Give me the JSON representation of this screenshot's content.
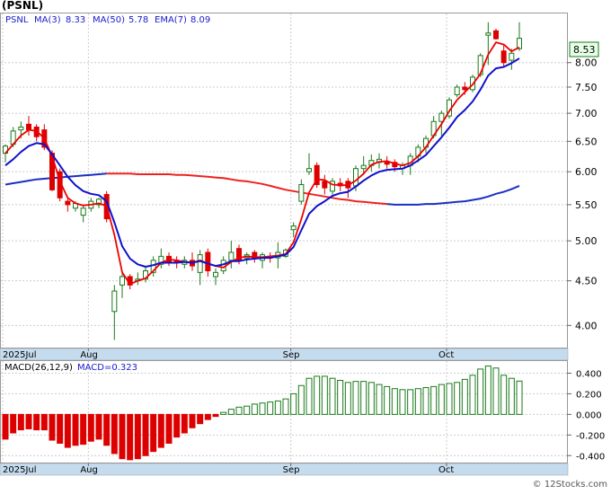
{
  "title": "(PSNL)",
  "legend": {
    "symbol": "PSNL",
    "ma3_label": "MA(3)",
    "ma3_value": "8.33",
    "ma50_label": "MA(50)",
    "ma50_value": "5.78",
    "ema7_label": "EMA(7)",
    "ema7_value": "8.09"
  },
  "last_price_label": "8.53",
  "macd_legend": {
    "label": "MACD(26,12,9)",
    "value_label": "MACD=0.323"
  },
  "watermark": "© 12Stocks.com",
  "colors": {
    "up": "#1a7a1a",
    "down": "#dd0000",
    "ma3": "#ee0000",
    "ema7": "#1010cc",
    "ma50_line": "#ee2222",
    "ma50_long": "#1a30c0",
    "axisbar": "#c5dcef",
    "macd_pos": "#1a7a1a",
    "macd_neg": "#dd0000",
    "price_tag": "#e8ffe8"
  },
  "chart_data": [
    {
      "type": "candlestick",
      "title": "(PSNL)",
      "scale": "log",
      "ylim": [
        3.8,
        9.0
      ],
      "y_ticks": [
        "8.00",
        "7.50",
        "7.00",
        "6.50",
        "6.00",
        "5.50",
        "5.00",
        "4.50",
        "4.00"
      ],
      "x_labels": [
        {
          "label": "2025Jul",
          "index": 0
        },
        {
          "label": "Aug",
          "index": 11
        },
        {
          "label": "Sep",
          "index": 37
        },
        {
          "label": "Oct",
          "index": 57
        }
      ],
      "ohlc": [
        [
          6.3,
          6.45,
          6.15,
          6.42
        ],
        [
          6.45,
          6.75,
          6.4,
          6.68
        ],
        [
          6.7,
          6.85,
          6.55,
          6.75
        ],
        [
          6.8,
          6.95,
          6.6,
          6.7
        ],
        [
          6.75,
          6.8,
          6.5,
          6.58
        ],
        [
          6.7,
          6.8,
          6.35,
          6.4
        ],
        [
          6.3,
          6.35,
          5.7,
          5.72
        ],
        [
          6.0,
          6.05,
          5.55,
          5.6
        ],
        [
          5.55,
          5.6,
          5.4,
          5.5
        ],
        [
          5.45,
          5.55,
          5.4,
          5.52
        ],
        [
          5.35,
          5.5,
          5.25,
          5.45
        ],
        [
          5.45,
          5.6,
          5.4,
          5.55
        ],
        [
          5.5,
          5.6,
          5.45,
          5.58
        ],
        [
          5.65,
          5.7,
          5.25,
          5.3
        ],
        [
          4.15,
          4.45,
          3.85,
          4.38
        ],
        [
          4.45,
          4.6,
          4.3,
          4.55
        ],
        [
          4.55,
          4.58,
          4.4,
          4.45
        ],
        [
          4.5,
          4.6,
          4.45,
          4.52
        ],
        [
          4.52,
          4.68,
          4.48,
          4.62
        ],
        [
          4.6,
          4.8,
          4.55,
          4.75
        ],
        [
          4.7,
          4.9,
          4.65,
          4.8
        ],
        [
          4.8,
          4.85,
          4.68,
          4.72
        ],
        [
          4.75,
          4.8,
          4.65,
          4.72
        ],
        [
          4.7,
          4.8,
          4.65,
          4.75
        ],
        [
          4.75,
          4.85,
          4.62,
          4.68
        ],
        [
          4.6,
          4.88,
          4.45,
          4.82
        ],
        [
          4.85,
          4.9,
          4.55,
          4.62
        ],
        [
          4.55,
          4.65,
          4.45,
          4.6
        ],
        [
          4.62,
          4.8,
          4.58,
          4.75
        ],
        [
          4.75,
          5.0,
          4.65,
          4.85
        ],
        [
          4.9,
          4.95,
          4.7,
          4.75
        ],
        [
          4.78,
          4.85,
          4.7,
          4.82
        ],
        [
          4.85,
          4.88,
          4.72,
          4.78
        ],
        [
          4.75,
          4.85,
          4.65,
          4.82
        ],
        [
          4.8,
          4.85,
          4.72,
          4.78
        ],
        [
          4.78,
          4.98,
          4.65,
          4.85
        ],
        [
          4.8,
          4.9,
          4.78,
          4.88
        ],
        [
          5.15,
          5.25,
          5.05,
          5.2
        ],
        [
          5.55,
          5.88,
          5.5,
          5.8
        ],
        [
          6.0,
          6.3,
          5.95,
          6.05
        ],
        [
          6.1,
          6.15,
          5.75,
          5.8
        ],
        [
          5.85,
          5.95,
          5.65,
          5.75
        ],
        [
          5.7,
          5.9,
          5.65,
          5.85
        ],
        [
          5.82,
          5.9,
          5.7,
          5.78
        ],
        [
          5.85,
          5.9,
          5.6,
          5.75
        ],
        [
          5.78,
          6.1,
          5.7,
          6.05
        ],
        [
          6.05,
          6.25,
          5.95,
          6.1
        ],
        [
          6.1,
          6.28,
          6.0,
          6.18
        ],
        [
          6.15,
          6.3,
          6.05,
          6.2
        ],
        [
          6.15,
          6.25,
          6.05,
          6.12
        ],
        [
          6.15,
          6.2,
          6.0,
          6.08
        ],
        [
          6.05,
          6.15,
          5.95,
          6.1
        ],
        [
          6.1,
          6.3,
          5.95,
          6.25
        ],
        [
          6.25,
          6.45,
          6.15,
          6.4
        ],
        [
          6.4,
          6.6,
          6.3,
          6.55
        ],
        [
          6.6,
          6.95,
          6.55,
          6.85
        ],
        [
          6.85,
          7.05,
          6.6,
          7.0
        ],
        [
          6.95,
          7.3,
          6.9,
          7.25
        ],
        [
          7.35,
          7.55,
          7.3,
          7.5
        ],
        [
          7.5,
          7.6,
          7.35,
          7.45
        ],
        [
          7.45,
          7.75,
          7.4,
          7.7
        ],
        [
          7.75,
          8.2,
          7.7,
          8.15
        ],
        [
          8.6,
          8.9,
          7.95,
          8.65
        ],
        [
          8.7,
          8.75,
          8.5,
          8.52
        ],
        [
          8.25,
          8.4,
          7.9,
          8.0
        ],
        [
          8.05,
          8.3,
          7.85,
          8.2
        ],
        [
          8.3,
          8.9,
          8.25,
          8.53
        ]
      ],
      "series": [
        {
          "name": "MA(3)",
          "values": [
            6.3,
            6.45,
            6.6,
            6.7,
            6.68,
            6.55,
            6.25,
            5.85,
            5.6,
            5.52,
            5.49,
            5.5,
            5.52,
            5.48,
            5.08,
            4.6,
            4.46,
            4.5,
            4.53,
            4.62,
            4.72,
            4.76,
            4.75,
            4.73,
            4.72,
            4.75,
            4.71,
            4.68,
            4.66,
            4.73,
            4.78,
            4.8,
            4.79,
            4.79,
            4.8,
            4.81,
            4.83,
            4.98,
            5.29,
            5.68,
            5.88,
            5.87,
            5.8,
            5.79,
            5.79,
            5.86,
            5.97,
            6.11,
            6.16,
            6.17,
            6.13,
            6.1,
            6.14,
            6.25,
            6.4,
            6.6,
            6.8,
            7.04,
            7.25,
            7.4,
            7.55,
            7.77,
            8.17,
            8.44,
            8.39,
            8.24,
            8.33
          ]
        },
        {
          "name": "EMA(7)",
          "values": [
            6.1,
            6.2,
            6.32,
            6.42,
            6.47,
            6.45,
            6.28,
            6.1,
            5.92,
            5.79,
            5.7,
            5.66,
            5.64,
            5.55,
            5.25,
            4.93,
            4.77,
            4.7,
            4.67,
            4.69,
            4.72,
            4.72,
            4.72,
            4.73,
            4.72,
            4.74,
            4.71,
            4.68,
            4.7,
            4.74,
            4.74,
            4.76,
            4.77,
            4.78,
            4.78,
            4.8,
            4.82,
            4.92,
            5.14,
            5.37,
            5.48,
            5.55,
            5.63,
            5.67,
            5.69,
            5.77,
            5.86,
            5.94,
            6.0,
            6.03,
            6.04,
            6.05,
            6.1,
            6.18,
            6.27,
            6.42,
            6.57,
            6.74,
            6.93,
            7.06,
            7.22,
            7.45,
            7.73,
            7.88,
            7.91,
            7.99,
            8.09
          ]
        },
        {
          "name": "MA(50)",
          "values": [
            5.8,
            5.82,
            5.84,
            5.86,
            5.88,
            5.89,
            5.9,
            5.91,
            5.92,
            5.93,
            5.94,
            5.95,
            5.96,
            5.97,
            5.97,
            5.97,
            5.97,
            5.96,
            5.96,
            5.96,
            5.96,
            5.96,
            5.95,
            5.95,
            5.94,
            5.93,
            5.92,
            5.91,
            5.9,
            5.88,
            5.86,
            5.85,
            5.83,
            5.81,
            5.78,
            5.75,
            5.72,
            5.7,
            5.68,
            5.66,
            5.64,
            5.62,
            5.6,
            5.58,
            5.57,
            5.55,
            5.54,
            5.53,
            5.52,
            5.51,
            5.5,
            5.5,
            5.5,
            5.5,
            5.51,
            5.51,
            5.52,
            5.53,
            5.54,
            5.55,
            5.57,
            5.59,
            5.62,
            5.66,
            5.69,
            5.73,
            5.78
          ]
        }
      ]
    },
    {
      "type": "bar",
      "title": "MACD(26,12,9)",
      "ylim": [
        -0.45,
        0.5
      ],
      "y_ticks": [
        "0.400",
        "0.200",
        "0.000",
        "-0.200",
        "-0.400"
      ],
      "x_labels": [
        {
          "label": "2025Jul",
          "index": 0
        },
        {
          "label": "Aug",
          "index": 11
        },
        {
          "label": "Sep",
          "index": 37
        },
        {
          "label": "Oct",
          "index": 57
        }
      ],
      "values": [
        -0.24,
        -0.18,
        -0.15,
        -0.14,
        -0.15,
        -0.15,
        -0.25,
        -0.28,
        -0.32,
        -0.3,
        -0.29,
        -0.26,
        -0.24,
        -0.3,
        -0.38,
        -0.43,
        -0.44,
        -0.43,
        -0.4,
        -0.36,
        -0.32,
        -0.28,
        -0.22,
        -0.18,
        -0.13,
        -0.09,
        -0.05,
        -0.02,
        0.02,
        0.05,
        0.07,
        0.08,
        0.1,
        0.11,
        0.12,
        0.13,
        0.15,
        0.2,
        0.28,
        0.35,
        0.37,
        0.37,
        0.35,
        0.33,
        0.31,
        0.32,
        0.32,
        0.31,
        0.29,
        0.27,
        0.25,
        0.24,
        0.24,
        0.25,
        0.26,
        0.27,
        0.29,
        0.3,
        0.31,
        0.34,
        0.38,
        0.44,
        0.47,
        0.45,
        0.38,
        0.35,
        0.323
      ]
    }
  ]
}
